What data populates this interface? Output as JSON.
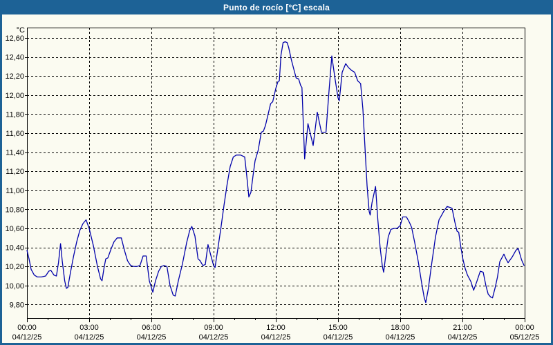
{
  "window": {
    "title": "Punto de rocío [°C] escala",
    "titlebar_color": "#1d6296",
    "content_bg": "#fbfbf1"
  },
  "chart_data": {
    "type": "line",
    "title": "Punto de rocío [°C] escala",
    "unit_label": "°C",
    "line_color": "#0000aa",
    "grid_color": "#000000",
    "text_color": "#000000",
    "grid_dashed": true,
    "legend_position": "none",
    "ylim": [
      9.7,
      12.7
    ],
    "y_tick_values": [
      9.8,
      10.0,
      10.2,
      10.4,
      10.6,
      10.8,
      11.0,
      11.2,
      11.4,
      11.6,
      11.8,
      12.0,
      12.2,
      12.4,
      12.6
    ],
    "y_tick_labels": [
      "9,80",
      "10,00",
      "10,20",
      "10,40",
      "10,60",
      "10,80",
      "11,00",
      "11,20",
      "11,40",
      "11,60",
      "11,80",
      "12,00",
      "12,20",
      "12,40",
      "12,60"
    ],
    "x_range_hours": [
      0,
      24
    ],
    "x_minor_tick_every_hours": 1,
    "x_ticks": [
      {
        "hour": 0,
        "time": "00:00",
        "date": "04/12/25"
      },
      {
        "hour": 3,
        "time": "03:00",
        "date": "04/12/25"
      },
      {
        "hour": 6,
        "time": "06:00",
        "date": "04/12/25"
      },
      {
        "hour": 9,
        "time": "09:00",
        "date": "04/12/25"
      },
      {
        "hour": 12,
        "time": "12:00",
        "date": "04/12/25"
      },
      {
        "hour": 15,
        "time": "15:00",
        "date": "04/12/25"
      },
      {
        "hour": 18,
        "time": "18:00",
        "date": "04/12/25"
      },
      {
        "hour": 21,
        "time": "21:00",
        "date": "04/12/25"
      },
      {
        "hour": 24,
        "time": "00:00",
        "date": "05/12/25"
      }
    ],
    "series": [
      {
        "name": "Punto de rocío [°C]",
        "color": "#0000aa",
        "points": [
          [
            0,
            10.37
          ],
          [
            0.1,
            10.28
          ],
          [
            0.2,
            10.17
          ],
          [
            0.35,
            10.11
          ],
          [
            0.5,
            10.09
          ],
          [
            0.7,
            10.09
          ],
          [
            0.9,
            10.1
          ],
          [
            1.05,
            10.15
          ],
          [
            1.15,
            10.16
          ],
          [
            1.3,
            10.11
          ],
          [
            1.42,
            10.1
          ],
          [
            1.52,
            10.24
          ],
          [
            1.62,
            10.44
          ],
          [
            1.7,
            10.26
          ],
          [
            1.82,
            10.05
          ],
          [
            1.9,
            9.97
          ],
          [
            1.97,
            9.98
          ],
          [
            2.1,
            10.14
          ],
          [
            2.25,
            10.31
          ],
          [
            2.4,
            10.46
          ],
          [
            2.55,
            10.58
          ],
          [
            2.7,
            10.65
          ],
          [
            2.85,
            10.69
          ],
          [
            3,
            10.6
          ],
          [
            3.2,
            10.42
          ],
          [
            3.4,
            10.2
          ],
          [
            3.55,
            10.07
          ],
          [
            3.62,
            10.05
          ],
          [
            3.72,
            10.19
          ],
          [
            3.8,
            10.28
          ],
          [
            3.9,
            10.29
          ],
          [
            4.05,
            10.38
          ],
          [
            4.2,
            10.46
          ],
          [
            4.35,
            10.5
          ],
          [
            4.55,
            10.5
          ],
          [
            4.7,
            10.37
          ],
          [
            4.85,
            10.26
          ],
          [
            5,
            10.21
          ],
          [
            5.15,
            10.2
          ],
          [
            5.3,
            10.2
          ],
          [
            5.45,
            10.21
          ],
          [
            5.6,
            10.31
          ],
          [
            5.75,
            10.31
          ],
          [
            5.9,
            10.05
          ],
          [
            6.07,
            9.93
          ],
          [
            6.2,
            10.05
          ],
          [
            6.35,
            10.15
          ],
          [
            6.48,
            10.2
          ],
          [
            6.6,
            10.21
          ],
          [
            6.75,
            10.2
          ],
          [
            6.9,
            10
          ],
          [
            7.05,
            9.9
          ],
          [
            7.15,
            9.89
          ],
          [
            7.3,
            10.05
          ],
          [
            7.5,
            10.23
          ],
          [
            7.7,
            10.45
          ],
          [
            7.85,
            10.58
          ],
          [
            7.95,
            10.62
          ],
          [
            8.1,
            10.52
          ],
          [
            8.25,
            10.28
          ],
          [
            8.35,
            10.26
          ],
          [
            8.48,
            10.21
          ],
          [
            8.6,
            10.22
          ],
          [
            8.73,
            10.43
          ],
          [
            8.85,
            10.33
          ],
          [
            9,
            10.21
          ],
          [
            9.07,
            10.19
          ],
          [
            9.2,
            10.38
          ],
          [
            9.35,
            10.6
          ],
          [
            9.5,
            10.84
          ],
          [
            9.65,
            11.06
          ],
          [
            9.8,
            11.25
          ],
          [
            9.95,
            11.35
          ],
          [
            10.1,
            11.37
          ],
          [
            10.3,
            11.37
          ],
          [
            10.5,
            11.35
          ],
          [
            10.6,
            11.15
          ],
          [
            10.7,
            10.93
          ],
          [
            10.8,
            10.98
          ],
          [
            10.9,
            11.15
          ],
          [
            11,
            11.31
          ],
          [
            11.15,
            11.42
          ],
          [
            11.3,
            11.61
          ],
          [
            11.4,
            11.62
          ],
          [
            11.5,
            11.68
          ],
          [
            11.62,
            11.79
          ],
          [
            11.75,
            11.91
          ],
          [
            11.85,
            11.93
          ],
          [
            12,
            12.07
          ],
          [
            12.1,
            12.14
          ],
          [
            12.17,
            12.15
          ],
          [
            12.25,
            12.42
          ],
          [
            12.35,
            12.55
          ],
          [
            12.45,
            12.56
          ],
          [
            12.55,
            12.55
          ],
          [
            12.62,
            12.5
          ],
          [
            12.7,
            12.42
          ],
          [
            12.75,
            12.37
          ],
          [
            12.87,
            12.27
          ],
          [
            12.98,
            12.18
          ],
          [
            13.1,
            12.17
          ],
          [
            13.2,
            12.1
          ],
          [
            13.26,
            12.08
          ],
          [
            13.39,
            11.33
          ],
          [
            13.55,
            11.7
          ],
          [
            13.8,
            11.47
          ],
          [
            14,
            11.82
          ],
          [
            14.2,
            11.61
          ],
          [
            14.42,
            11.61
          ],
          [
            14.55,
            12
          ],
          [
            14.7,
            12.41
          ],
          [
            14.85,
            12.18
          ],
          [
            15,
            11.97
          ],
          [
            15.06,
            11.94
          ],
          [
            15.2,
            12.24
          ],
          [
            15.37,
            12.33
          ],
          [
            15.5,
            12.29
          ],
          [
            15.65,
            12.26
          ],
          [
            15.8,
            12.24
          ],
          [
            15.95,
            12.15
          ],
          [
            16.09,
            12.12
          ],
          [
            16.2,
            11.85
          ],
          [
            16.3,
            11.45
          ],
          [
            16.4,
            11.05
          ],
          [
            16.5,
            10.78
          ],
          [
            16.55,
            10.74
          ],
          [
            16.64,
            10.87
          ],
          [
            16.72,
            10.95
          ],
          [
            16.81,
            11.04
          ],
          [
            16.92,
            10.69
          ],
          [
            17.03,
            10.4
          ],
          [
            17.14,
            10.2
          ],
          [
            17.2,
            10.14
          ],
          [
            17.31,
            10.33
          ],
          [
            17.42,
            10.51
          ],
          [
            17.55,
            10.59
          ],
          [
            17.7,
            10.6
          ],
          [
            17.85,
            10.6
          ],
          [
            18,
            10.63
          ],
          [
            18.12,
            10.72
          ],
          [
            18.3,
            10.72
          ],
          [
            18.45,
            10.66
          ],
          [
            18.55,
            10.61
          ],
          [
            18.7,
            10.45
          ],
          [
            18.87,
            10.25
          ],
          [
            19.03,
            10.03
          ],
          [
            19.15,
            9.88
          ],
          [
            19.23,
            9.82
          ],
          [
            19.35,
            9.96
          ],
          [
            19.53,
            10.25
          ],
          [
            19.7,
            10.51
          ],
          [
            19.87,
            10.69
          ],
          [
            20,
            10.74
          ],
          [
            20.1,
            10.78
          ],
          [
            20.26,
            10.83
          ],
          [
            20.4,
            10.82
          ],
          [
            20.5,
            10.81
          ],
          [
            20.63,
            10.67
          ],
          [
            20.74,
            10.57
          ],
          [
            20.82,
            10.56
          ],
          [
            20.91,
            10.42
          ],
          [
            21.02,
            10.28
          ],
          [
            21.13,
            10.18
          ],
          [
            21.24,
            10.11
          ],
          [
            21.41,
            10.04
          ],
          [
            21.54,
            9.95
          ],
          [
            21.69,
            10.04
          ],
          [
            21.86,
            10.15
          ],
          [
            22,
            10.14
          ],
          [
            22.13,
            10
          ],
          [
            22.24,
            9.91
          ],
          [
            22.36,
            9.88
          ],
          [
            22.45,
            9.87
          ],
          [
            22.58,
            9.98
          ],
          [
            22.69,
            10.09
          ],
          [
            22.8,
            10.25
          ],
          [
            23,
            10.33
          ],
          [
            23.1,
            10.28
          ],
          [
            23.2,
            10.24
          ],
          [
            23.4,
            10.3
          ],
          [
            23.58,
            10.37
          ],
          [
            23.69,
            10.39
          ],
          [
            23.85,
            10.27
          ],
          [
            23.97,
            10.21
          ]
        ]
      }
    ]
  }
}
